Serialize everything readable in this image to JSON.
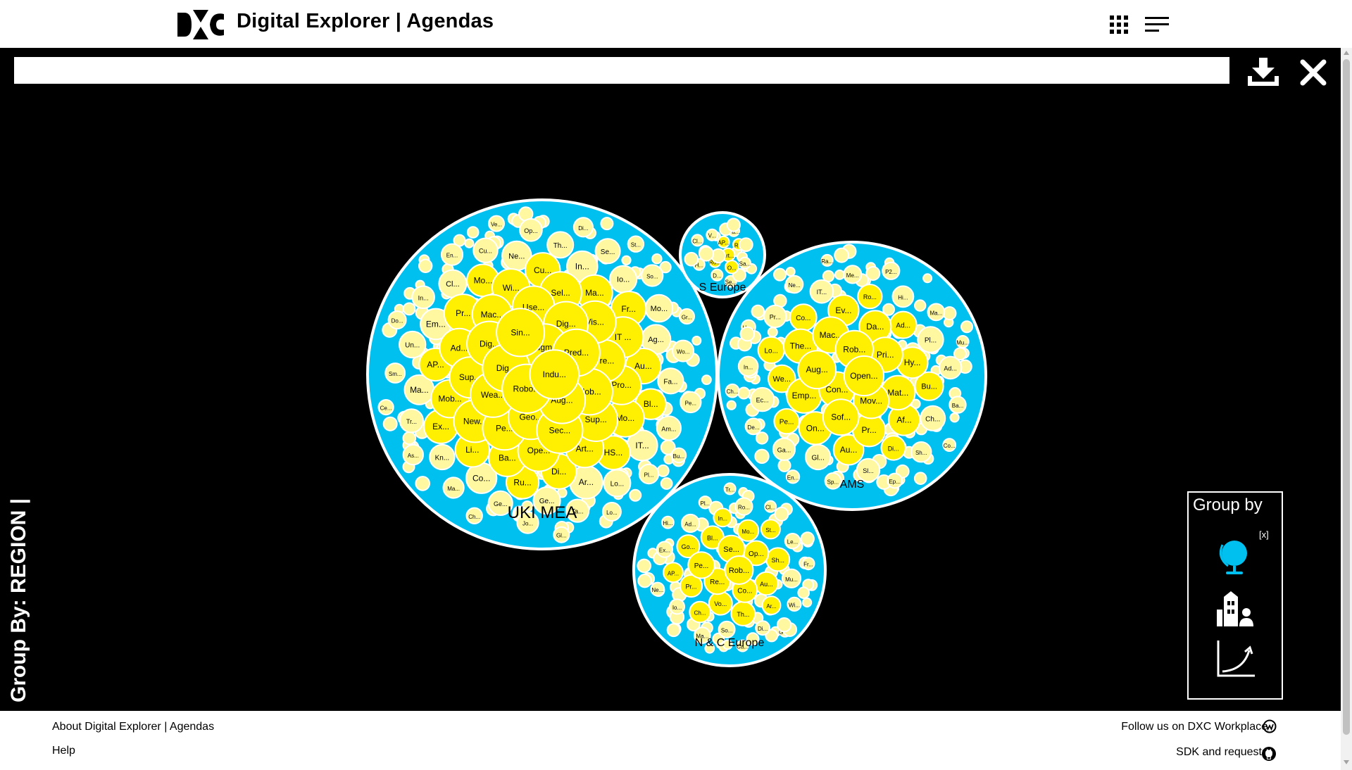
{
  "header": {
    "title": "Digital Explorer | Agendas",
    "icons": {
      "logo": "dxc-logo",
      "apps": "apps-grid-icon",
      "menu": "menu-icon"
    }
  },
  "search": {
    "value": "",
    "placeholder": ""
  },
  "toolbar": {
    "download_icon": "download-icon",
    "close_icon": "close-icon"
  },
  "group_by_label": "Group By: REGION |",
  "group_by_panel": {
    "title": "Group by",
    "clear": "[x]",
    "options": [
      {
        "name": "region",
        "icon": "globe-icon",
        "active": true
      },
      {
        "name": "industry",
        "icon": "buildings-person-icon",
        "active": false
      },
      {
        "name": "trend",
        "icon": "growth-curve-icon",
        "active": false
      }
    ]
  },
  "chart_data": {
    "type": "bubble-pack",
    "groups": [
      {
        "name": "UKI MEA",
        "labels": [
          "Indu...",
          "Robo...",
          "Augm...",
          "Aug...",
          "Dig...",
          "Pred...",
          "Geo...",
          "Sin...",
          "Mob...",
          "Wea...",
          "Dig...",
          "Sec...",
          "Dig...",
          "Pre...",
          "Pe...",
          "Use...",
          "Sup...",
          "Sup...",
          "Vis...",
          "Ope...",
          "Mac...",
          "Pro...",
          "New...",
          "Sel...",
          "Art...",
          "Ad...",
          "IT ...",
          "Ba...",
          "Wi...",
          "Mo...",
          "Mob...",
          "Ma...",
          "Di...",
          "Pr...",
          "Au...",
          "Li...",
          "Cu...",
          "HS...",
          "AP...",
          "Fr...",
          "Ru...",
          "Mo...",
          "Bl...",
          "Ex...",
          "In...",
          "Ar...",
          "Em...",
          "Ag...",
          "Co...",
          "Ne...",
          "IT...",
          "Ma...",
          "Io...",
          "Ge...",
          "Cl...",
          "Fa...",
          "Kn...",
          "Th...",
          "Lo...",
          "Un...",
          "Mo...",
          "Ge...",
          "Cu...",
          "Am...",
          "Tr...",
          "Se...",
          "Ta...",
          "In...",
          "Wo...",
          "Ma...",
          "Op...",
          "Pl...",
          "Sm...",
          "So...",
          "Jo...",
          "En...",
          "Pe...",
          "As...",
          "Di...",
          "Lo...",
          "Do...",
          "Gr...",
          "Ch...",
          "Ve...",
          "Bu...",
          "Ce...",
          "St...",
          "Gl..."
        ]
      },
      {
        "name": "S Europe",
        "labels": [
          "Art...",
          "Ro...",
          "AP...",
          "O...",
          "B...",
          "R...",
          "D...",
          "V...",
          "Sa...",
          "H...",
          "Ca...",
          "Se...",
          "Cl..."
        ]
      },
      {
        "name": "AMS",
        "labels": [
          "Open...",
          "Con...",
          "Rob...",
          "Mov...",
          "Aug...",
          "Pri...",
          "Sof...",
          "Mac...",
          "Mat...",
          "Emp...",
          "Da...",
          "Pr...",
          "The...",
          "Hy...",
          "On...",
          "Ev...",
          "Af...",
          "We...",
          "Ad...",
          "Au...",
          "Co...",
          "Bu...",
          "Pe...",
          "Ro...",
          "Di...",
          "Lo...",
          "Pl...",
          "Gl...",
          "IT...",
          "Ch...",
          "Ec...",
          "Hi...",
          "Sl...",
          "Pr...",
          "Ad...",
          "Ga...",
          "Me...",
          "Sh...",
          "In...",
          "Ma...",
          "Sp...",
          "Ne...",
          "Ba...",
          "De...",
          "P2...",
          "Ep...",
          "Ha...",
          "Mu...",
          "En...",
          "Ra...",
          "Co...",
          "Ch..."
        ]
      },
      {
        "name": "N & C Europe",
        "labels": [
          "Rob...",
          "Re...",
          "Se...",
          "Co...",
          "Pe...",
          "Op...",
          "Vo...",
          "Bl...",
          "Au...",
          "Pr...",
          "Mo...",
          "Th...",
          "Go...",
          "Sh...",
          "Ch...",
          "In...",
          "Ar...",
          "AP...",
          "St...",
          "So...",
          "Ad...",
          "Mu...",
          "Io...",
          "Ro...",
          "Di...",
          "Ex...",
          "Le...",
          "Ma...",
          "Pl...",
          "Wi...",
          "Ne...",
          "Cl...",
          "Ca...",
          "Hi...",
          "Fr...",
          "Ag...",
          "Tr...",
          "Ge..."
        ]
      }
    ]
  },
  "footer": {
    "about": "About Digital Explorer | Agendas",
    "help": "Help",
    "follow": "Follow us on DXC Workplace",
    "sdk": "SDK and requests",
    "icons": {
      "workplace": "workplace-icon",
      "github": "github-icon"
    }
  }
}
